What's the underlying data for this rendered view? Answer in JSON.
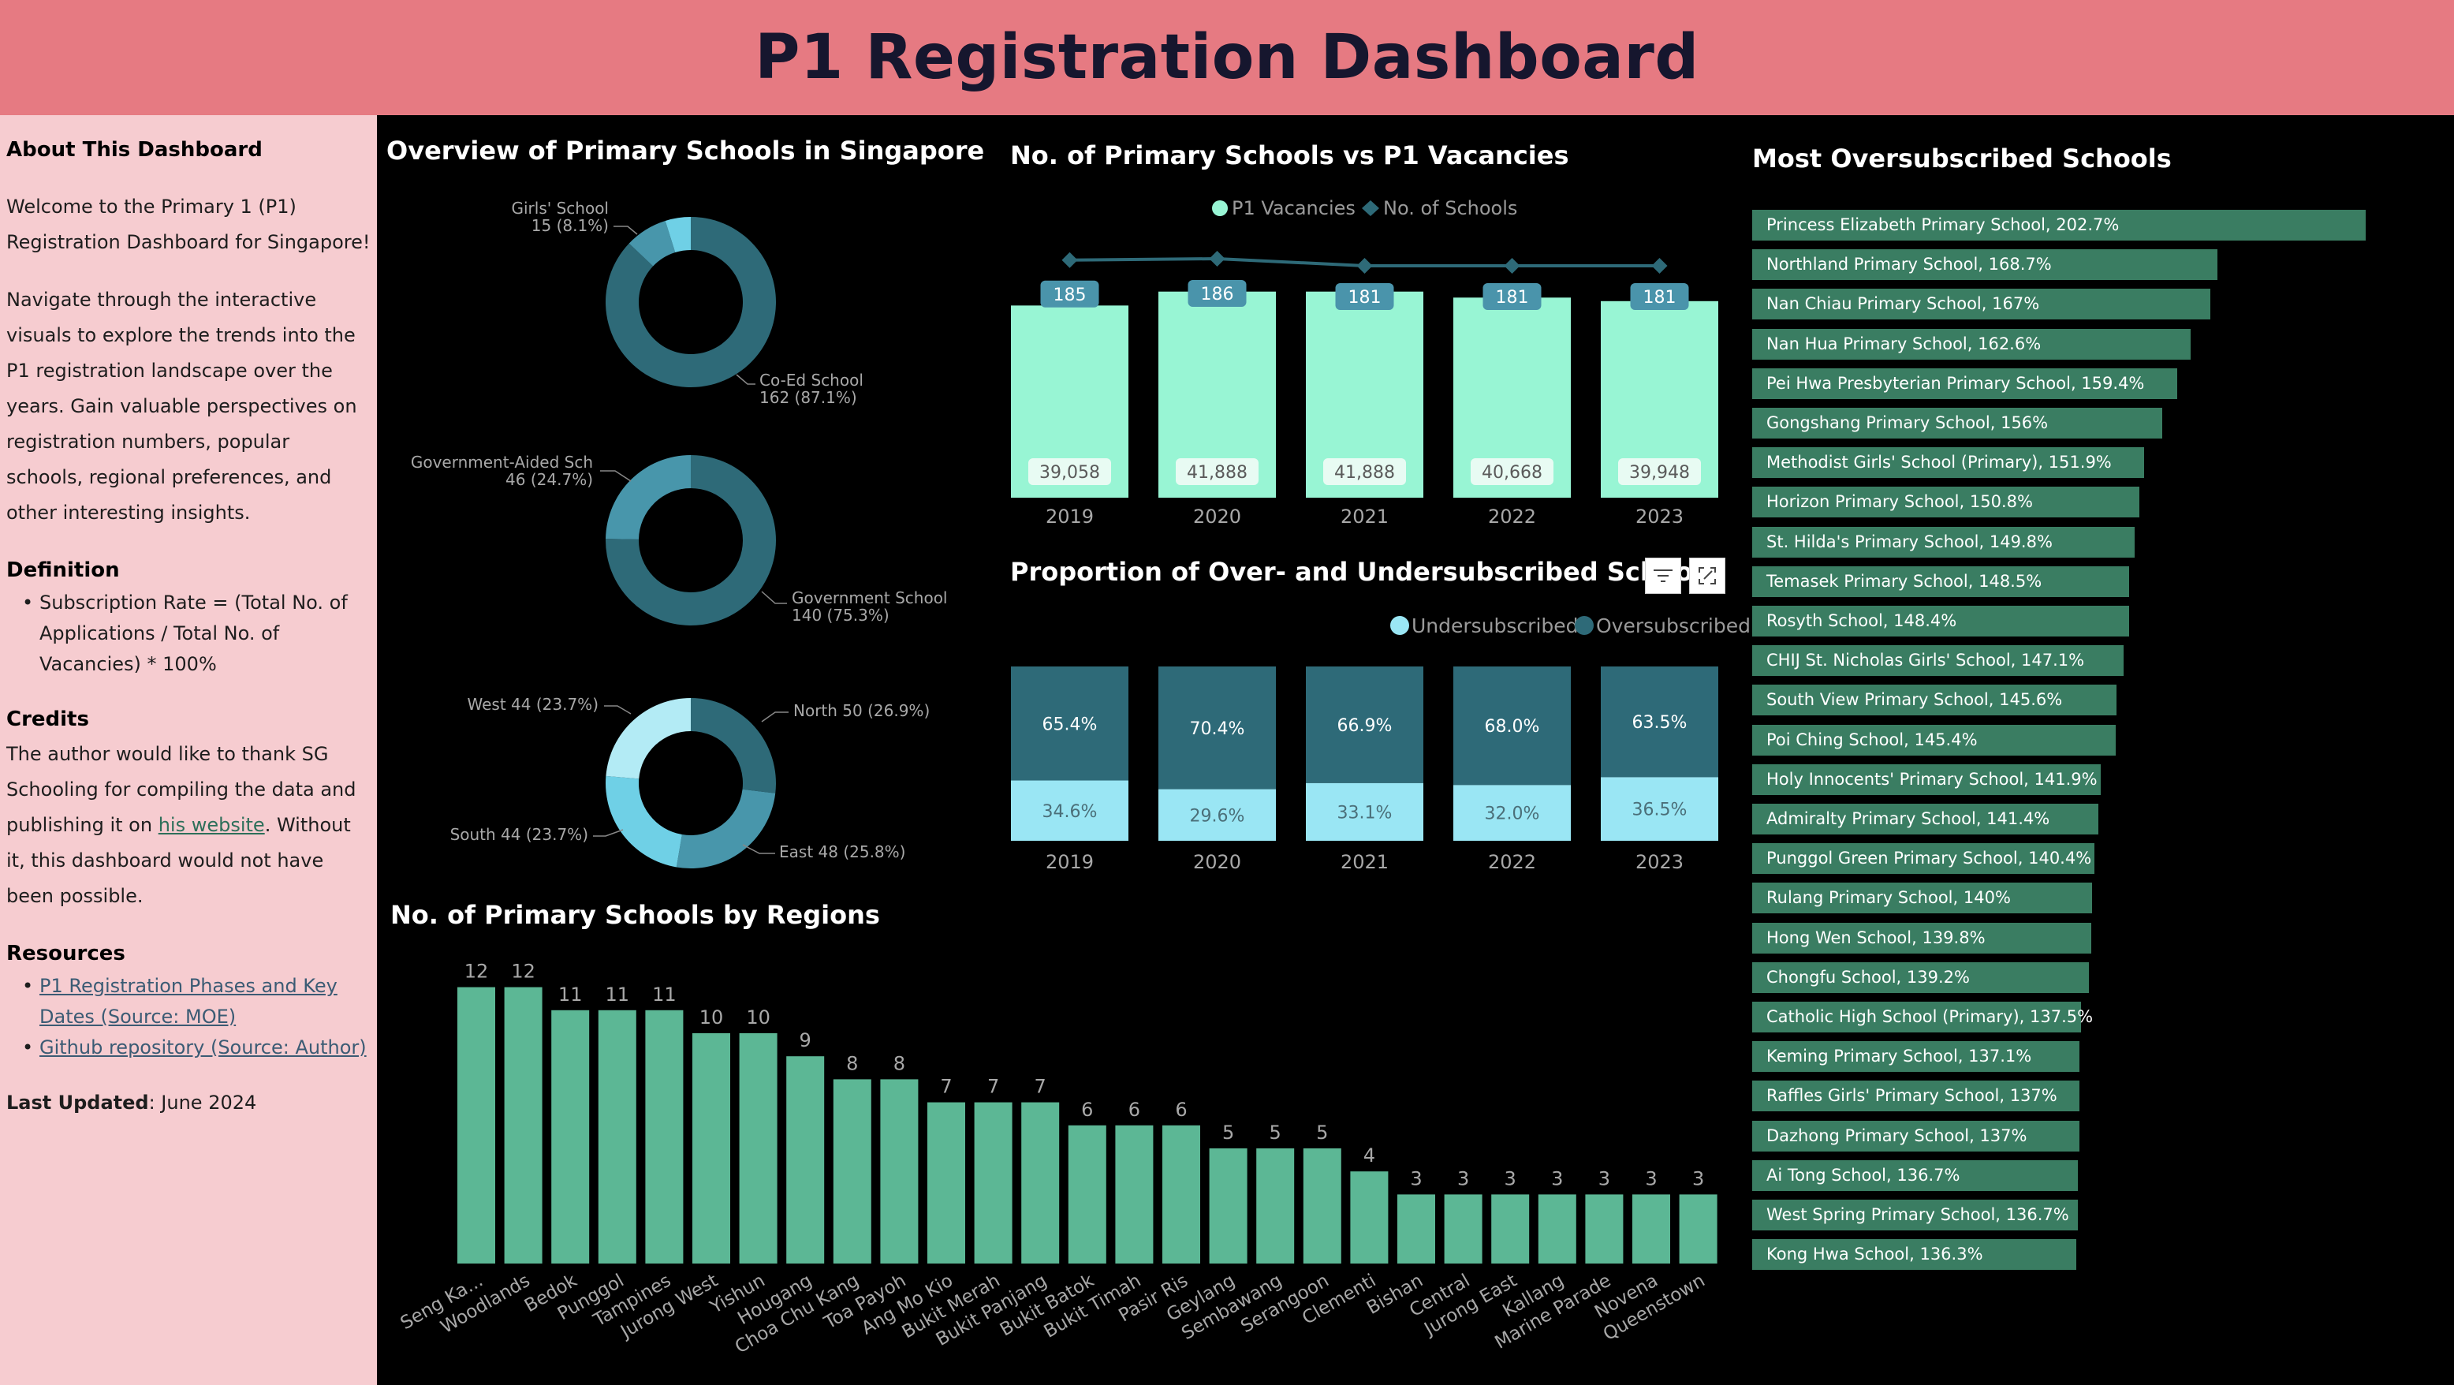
{
  "header": {
    "title": "P1 Registration Dashboard"
  },
  "sidebar": {
    "about_heading": "About This Dashboard",
    "about_text_1": "Welcome to the Primary 1 (P1) Registration Dashboard for Singapore!",
    "about_text_2": "Navigate through the interactive visuals to explore the trends into the P1 registration landscape over the years. Gain valuable perspectives on registration numbers, popular schools, regional preferences, and other interesting insights.",
    "definition_heading": "Definition",
    "definition_item": "Subscription Rate = (Total No. of Applications / Total No. of Vacancies) * 100%",
    "credits_heading": "Credits",
    "credits_before": "The author would like to thank SG Schooling for compiling the data and publishing it on ",
    "credits_link": "his website",
    "credits_after": ". Without it, this dashboard would not have been possible.",
    "resources_heading": "Resources",
    "resource_1": "P1 Registration Phases and Key Dates (Source: MOE)",
    "resource_2": "Github repository (Source: Author)",
    "last_updated_label": "Last Updated",
    "last_updated_value": ": June 2024"
  },
  "overview": {
    "title": "Overview of Primary Schools in Singapore",
    "donut1": {
      "slices": [
        {
          "label": "Co-Ed School",
          "value_text": "162 (87.1%)",
          "value": 162,
          "color": "#2e6a78"
        },
        {
          "label": "Girls' School",
          "value_text": "15 (8.1%)",
          "value": 15,
          "color": "#4896ab"
        },
        {
          "label": "",
          "value_text": "",
          "value": 9,
          "color": "#6fd0e6"
        }
      ]
    },
    "donut2": {
      "slices": [
        {
          "label": "Government School",
          "value_text": "140 (75.3%)",
          "value": 140,
          "color": "#2e6a78"
        },
        {
          "label": "Government-Aided Sch",
          "value_text": "46 (24.7%)",
          "value": 46,
          "color": "#4896ab"
        }
      ]
    },
    "donut3": {
      "slices": [
        {
          "label": "North 50 (26.9%)",
          "value": 50,
          "color": "#2e6a78"
        },
        {
          "label": "East 48 (25.8%)",
          "value": 48,
          "color": "#4896ab"
        },
        {
          "label": "South 44 (23.7%)",
          "value": 44,
          "color": "#6fd0e6"
        },
        {
          "label": "West 44 (23.7%)",
          "value": 44,
          "color": "#b3ebf5"
        }
      ]
    }
  },
  "vacancies": {
    "title": "No. of Primary Schools vs P1 Vacancies",
    "legend_vacancies": "P1 Vacancies",
    "legend_schools": "No. of Schools",
    "vacancies_color": "#98f5d4",
    "schools_color": "#2e6a78",
    "chart_data": {
      "type": "bar",
      "categories": [
        "2019",
        "2020",
        "2021",
        "2022",
        "2023"
      ],
      "series": [
        {
          "name": "P1 Vacancies",
          "values": [
            39058,
            41888,
            41888,
            40668,
            39948
          ],
          "labels": [
            "39,058",
            "41,888",
            "41,888",
            "40,668",
            "39,948"
          ]
        },
        {
          "name": "No. of Schools",
          "values": [
            185,
            186,
            181,
            181,
            181
          ]
        }
      ]
    }
  },
  "proportion": {
    "title": "Proportion of Over- and Undersubscribed Schools",
    "legend_under": "Undersubscribed",
    "legend_over": "Oversubscribed",
    "under_color": "#9ae6f4",
    "over_color": "#2e6a78",
    "chart_data": {
      "type": "bar",
      "categories": [
        "2019",
        "2020",
        "2021",
        "2022",
        "2023"
      ],
      "series": [
        {
          "name": "Undersubscribed",
          "values": [
            34.6,
            29.6,
            33.1,
            32.0,
            36.5
          ],
          "labels": [
            "34.6%",
            "29.6%",
            "33.1%",
            "32.0%",
            "36.5%"
          ]
        },
        {
          "name": "Oversubscribed",
          "values": [
            65.4,
            70.4,
            66.9,
            68.0,
            63.5
          ],
          "labels": [
            "65.4%",
            "70.4%",
            "66.9%",
            "68.0%",
            "63.5%"
          ]
        }
      ]
    }
  },
  "regions": {
    "title": "No. of Primary Schools by Regions",
    "bar_color": "#5cb795",
    "chart_data": {
      "type": "bar",
      "categories": [
        "Seng Ka...",
        "Woodlands",
        "Bedok",
        "Punggol",
        "Tampines",
        "Jurong West",
        "Yishun",
        "Hougang",
        "Choa Chu Kang",
        "Toa Payoh",
        "Ang Mo Kio",
        "Bukit Merah",
        "Bukit Panjang",
        "Bukit Batok",
        "Bukit Timah",
        "Pasir Ris",
        "Geylang",
        "Sembawang",
        "Serangoon",
        "Clementi",
        "Bishan",
        "Central",
        "Jurong East",
        "Kallang",
        "Marine Parade",
        "Novena",
        "Queenstown"
      ],
      "values": [
        12,
        12,
        11,
        11,
        11,
        10,
        10,
        9,
        8,
        8,
        7,
        7,
        7,
        6,
        6,
        6,
        5,
        5,
        5,
        4,
        3,
        3,
        3,
        3,
        3,
        3,
        3
      ]
    }
  },
  "oversubscribed": {
    "title": "Most Oversubscribed Schools",
    "bar_color": "#3a7d62",
    "chart_data": {
      "type": "bar",
      "categories": [
        "Princess Elizabeth Primary School",
        "Northland Primary School",
        "Nan Chiau Primary School",
        "Nan Hua Primary School",
        "Pei Hwa Presbyterian Primary School",
        "Gongshang Primary School",
        "Methodist Girls' School (Primary)",
        "Horizon Primary School",
        "St. Hilda's Primary School",
        "Temasek Primary School",
        "Rosyth School",
        "CHIJ St. Nicholas Girls' School",
        "South View Primary School",
        "Poi Ching School",
        "Holy Innocents' Primary School",
        "Admiralty Primary School",
        "Punggol Green Primary School",
        "Rulang Primary School",
        "Hong Wen School",
        "Chongfu School",
        "Catholic High School (Primary)",
        "Keming Primary School",
        "Raffles Girls' Primary School",
        "Dazhong Primary School",
        "Ai Tong School",
        "West Spring Primary School",
        "Kong Hwa School"
      ],
      "values": [
        202.7,
        168.7,
        167,
        162.6,
        159.4,
        156,
        151.9,
        150.8,
        149.8,
        148.5,
        148.4,
        147.1,
        145.6,
        145.4,
        141.9,
        141.4,
        140.4,
        140,
        139.8,
        139.2,
        137.5,
        137.1,
        137,
        137,
        136.7,
        136.7,
        136.3
      ],
      "labels": [
        "Princess Elizabeth Primary School, 202.7%",
        "Northland Primary School, 168.7%",
        "Nan Chiau Primary School, 167%",
        "Nan Hua Primary School, 162.6%",
        "Pei Hwa Presbyterian Primary School, 159.4%",
        "Gongshang Primary School, 156%",
        "Methodist Girls' School (Primary), 151.9%",
        "Horizon Primary School, 150.8%",
        "St. Hilda's Primary School, 149.8%",
        "Temasek Primary School, 148.5%",
        "Rosyth School, 148.4%",
        "CHIJ St. Nicholas Girls' School, 147.1%",
        "South View Primary School, 145.6%",
        "Poi Ching School, 145.4%",
        "Holy Innocents' Primary School, 141.9%",
        "Admiralty Primary School, 141.4%",
        "Punggol Green Primary School, 140.4%",
        "Rulang Primary School, 140%",
        "Hong Wen School, 139.8%",
        "Chongfu School, 139.2%",
        "Catholic High School (Primary), 137.5%",
        "Keming Primary School, 137.1%",
        "Raffles Girls' Primary School, 137%",
        "Dazhong Primary School, 137%",
        "Ai Tong School, 136.7%",
        "West Spring Primary School, 136.7%",
        "Kong Hwa School, 136.3%"
      ]
    }
  },
  "toolbar": {
    "filter_icon": "filter-icon",
    "focus_icon": "focus-mode-icon"
  }
}
